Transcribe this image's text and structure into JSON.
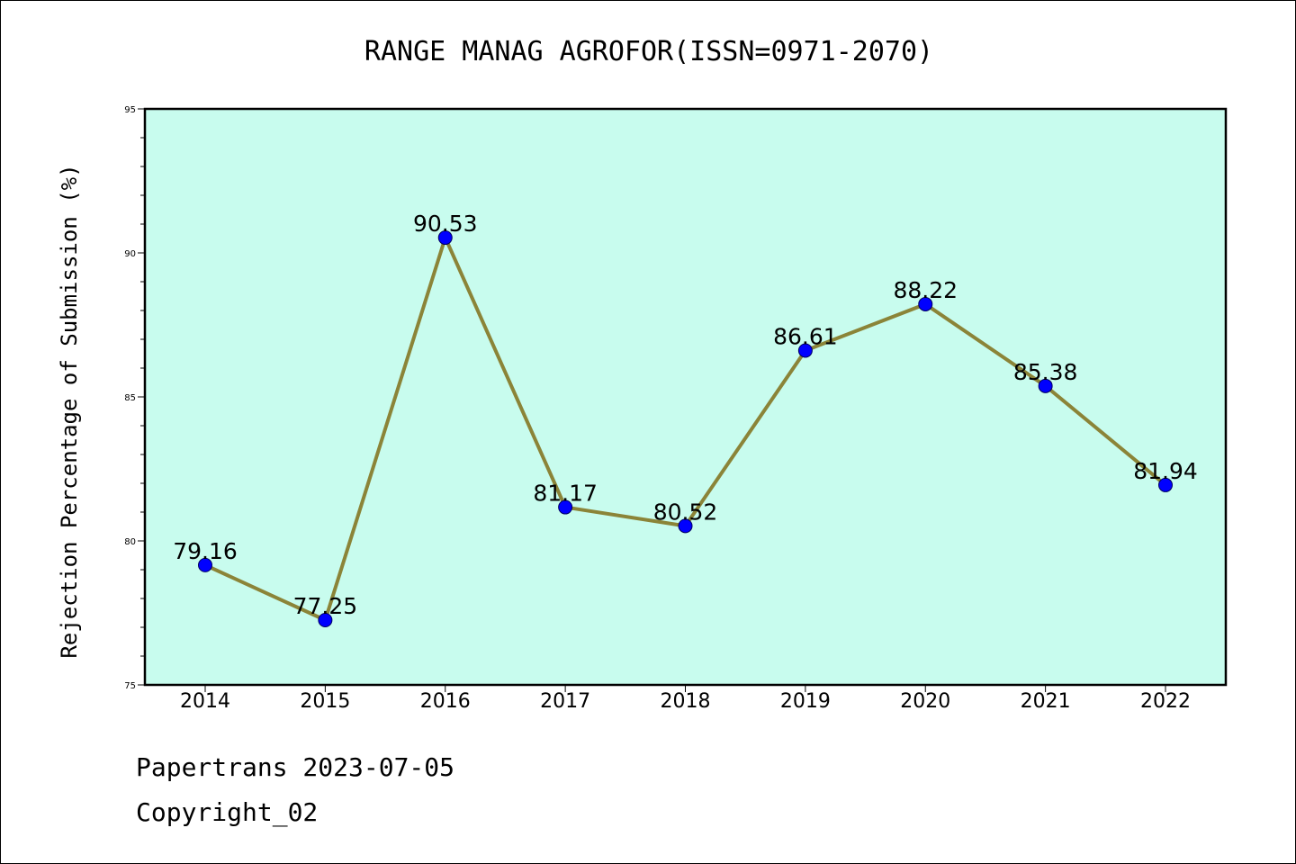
{
  "chart_data": {
    "type": "line",
    "title": "RANGE MANAG AGROFOR(ISSN=0971-2070)",
    "xlabel": "",
    "ylabel": "Rejection Percentage of Submission (%)",
    "categories": [
      "2014",
      "2015",
      "2016",
      "2017",
      "2018",
      "2019",
      "2020",
      "2021",
      "2022"
    ],
    "series": [
      {
        "name": "Rejection Percentage",
        "values": [
          79.16,
          77.25,
          90.53,
          81.17,
          80.52,
          86.61,
          88.22,
          85.38,
          81.94
        ],
        "line_color": "#8b8438",
        "marker_color": "#0000ff"
      }
    ],
    "data_labels": [
      "79.16",
      "77.25",
      "90.53",
      "81.17",
      "80.52",
      "86.61",
      "88.22",
      "85.38",
      "81.94"
    ],
    "ylim": [
      75,
      95
    ],
    "y_ticks": [
      "75",
      "80",
      "85",
      "90",
      "95"
    ],
    "y_minor_step": 1,
    "plot_background": "#c8fcee",
    "grid": false,
    "legend": "none"
  },
  "footer": {
    "source": "Papertrans 2023-07-05",
    "copyright": "Copyright_02"
  }
}
